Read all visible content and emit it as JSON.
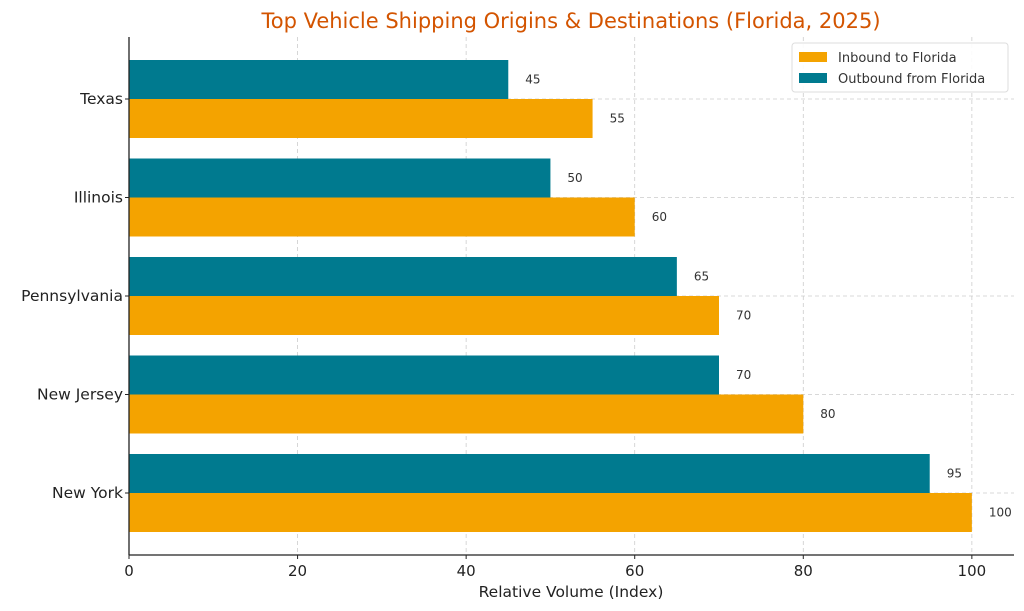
{
  "chart_data": {
    "type": "bar",
    "orientation": "horizontal",
    "title": "Top Vehicle Shipping Origins & Destinations (Florida, 2025)",
    "xlabel": "Relative Volume (Index)",
    "ylabel": "",
    "xlim": [
      0,
      105
    ],
    "xticks": [
      0,
      20,
      40,
      60,
      80,
      100
    ],
    "grid": true,
    "legend_position": "top-right",
    "categories": [
      "New York",
      "New Jersey",
      "Pennsylvania",
      "Illinois",
      "Texas"
    ],
    "series": [
      {
        "name": "Inbound to Florida",
        "color": "#f4a300",
        "values": [
          100,
          80,
          70,
          60,
          55
        ]
      },
      {
        "name": "Outbound from Florida",
        "color": "#007a8f",
        "values": [
          95,
          70,
          65,
          50,
          45
        ]
      }
    ]
  }
}
